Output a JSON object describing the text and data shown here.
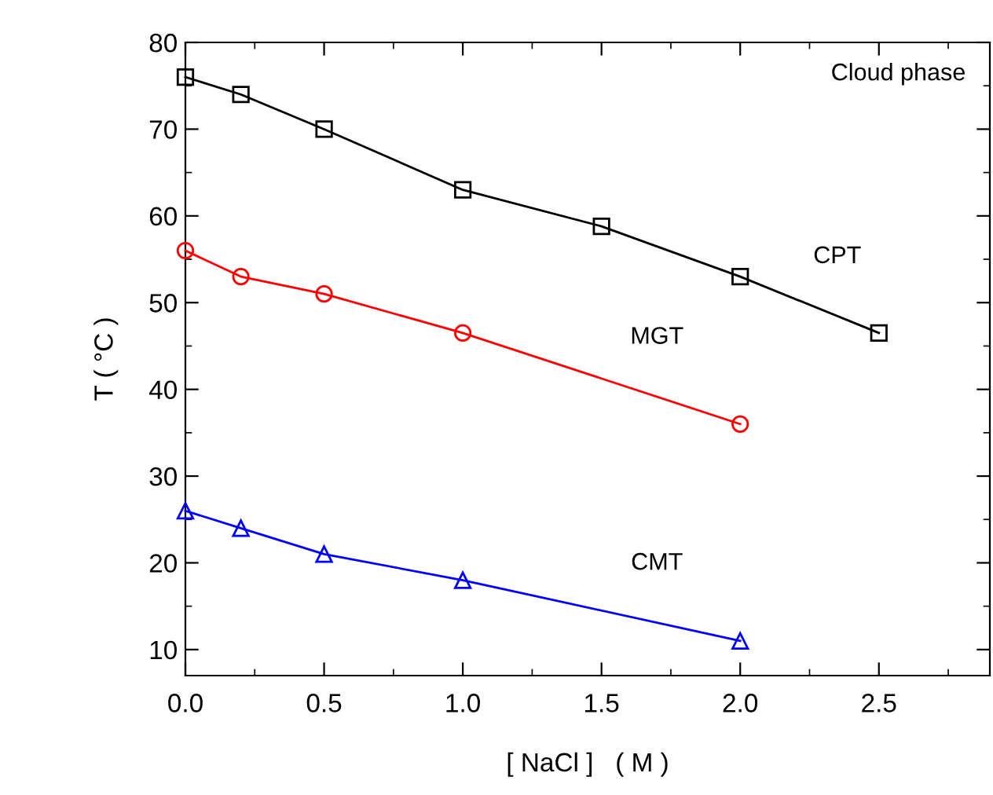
{
  "chart_data": {
    "type": "line",
    "xlabel": "[ NaCl ]   ( M )",
    "ylabel": "T ( °C )",
    "xlim": [
      0,
      2.9
    ],
    "ylim": [
      7,
      80
    ],
    "xticks": [
      {
        "value": 0,
        "label": "0.0"
      },
      {
        "value": 0.5,
        "label": "0.5"
      },
      {
        "value": 1.0,
        "label": "1.0"
      },
      {
        "value": 1.5,
        "label": "1.5"
      },
      {
        "value": 2.0,
        "label": "2.0"
      },
      {
        "value": 2.5,
        "label": "2.5"
      }
    ],
    "yticks": [
      10,
      20,
      30,
      40,
      50,
      60,
      70,
      80
    ],
    "grid": false,
    "legend": false,
    "annotations": [
      "Cloud phase"
    ],
    "series": [
      {
        "name": "CPT",
        "color": "#000000",
        "marker": "square",
        "x": [
          0,
          0.2,
          0.5,
          1.0,
          1.5,
          2.0,
          2.5
        ],
        "values": [
          76,
          74,
          70,
          63,
          58.8,
          53,
          46.5
        ]
      },
      {
        "name": "MGT",
        "color": "#ff0000",
        "marker": "circle",
        "x": [
          0,
          0.2,
          0.5,
          1.0,
          2.0
        ],
        "values": [
          56,
          53,
          51,
          46.5,
          36
        ]
      },
      {
        "name": "CMT",
        "color": "#0000ff",
        "marker": "triangle",
        "x": [
          0,
          0.2,
          0.5,
          1.0,
          2.0
        ],
        "values": [
          26,
          24,
          21,
          18,
          11
        ]
      }
    ]
  }
}
